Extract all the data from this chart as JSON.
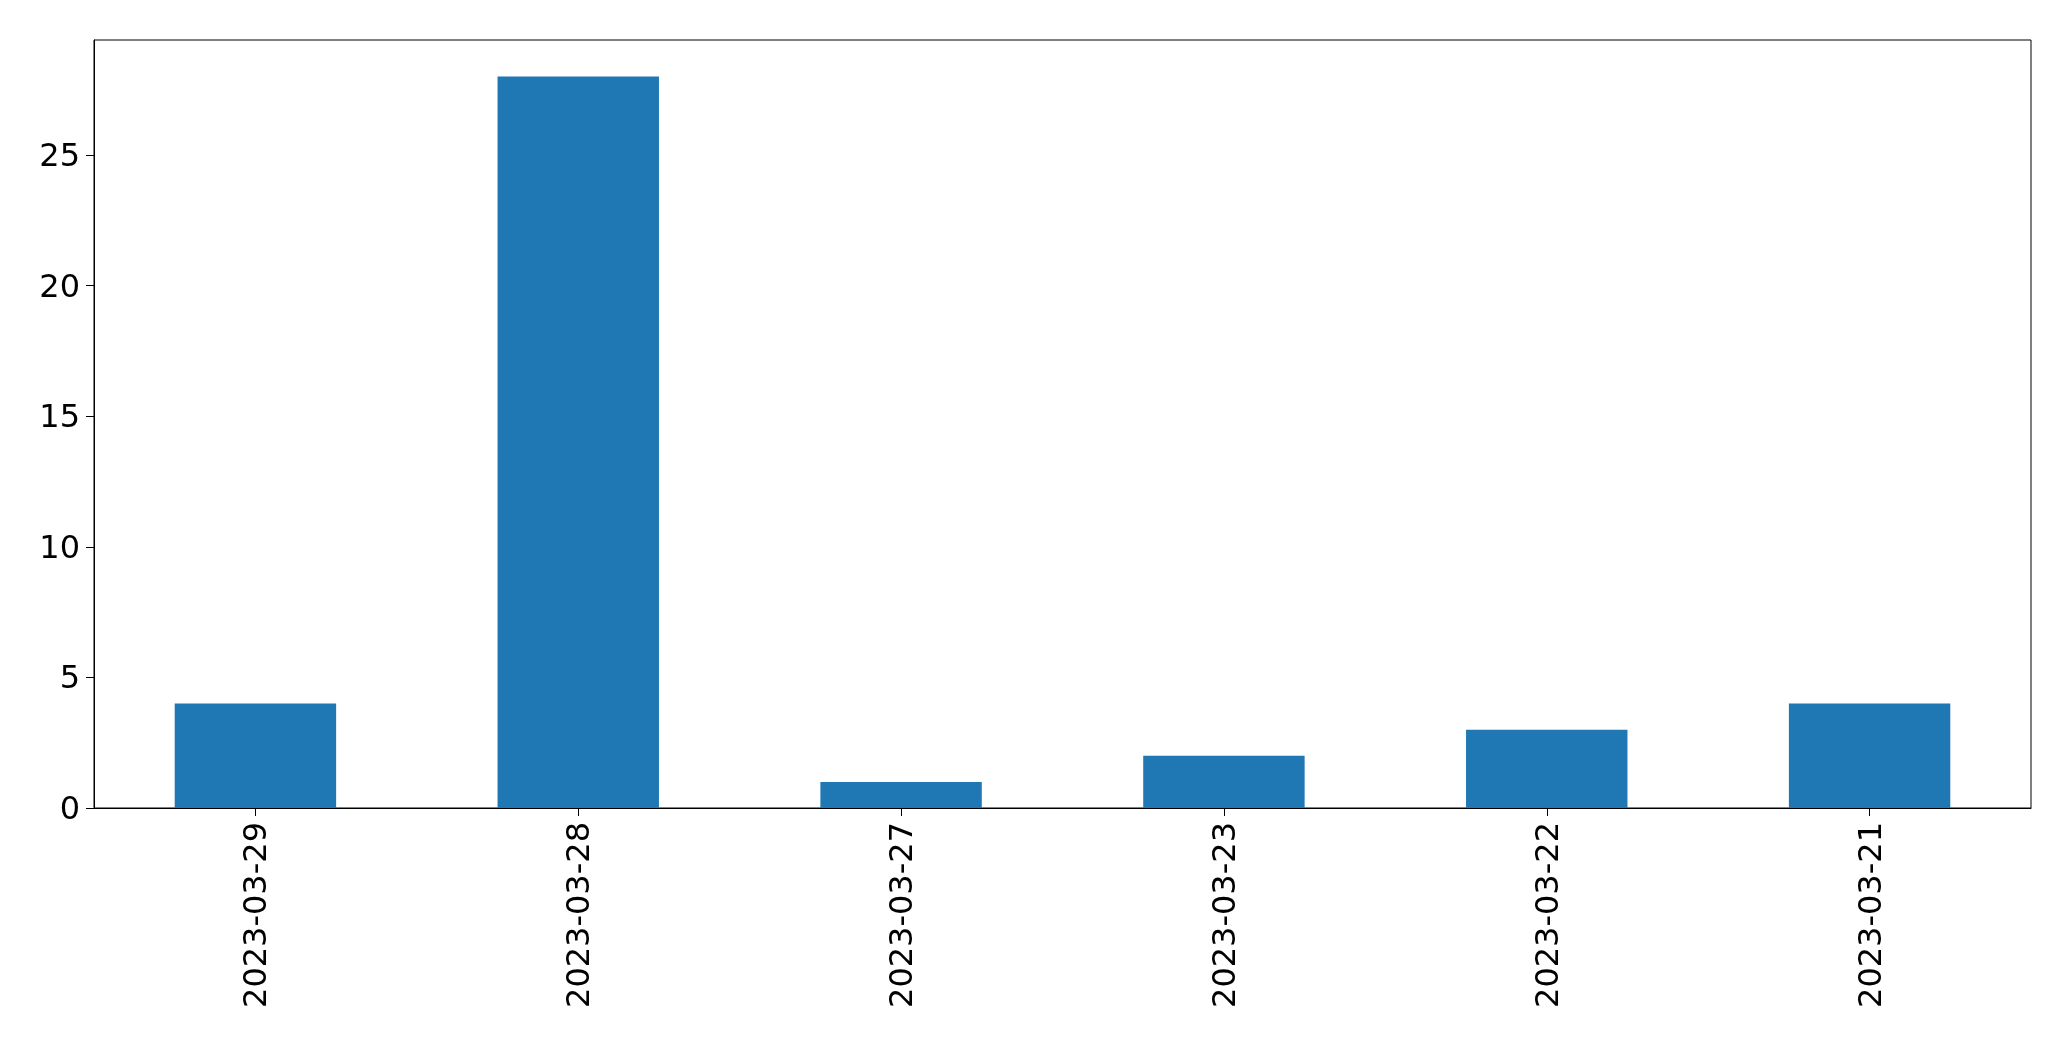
{
  "chart_data": {
    "type": "bar",
    "categories": [
      "2023-03-29",
      "2023-03-28",
      "2023-03-27",
      "2023-03-23",
      "2023-03-22",
      "2023-03-21"
    ],
    "series": [
      {
        "color": "#1f77b4",
        "values": [
          4,
          28,
          1,
          2,
          3,
          4
        ]
      }
    ],
    "ylim": [
      0,
      29.4
    ],
    "yticks": [
      0,
      5,
      10,
      15,
      20,
      25
    ],
    "grid": false
  }
}
